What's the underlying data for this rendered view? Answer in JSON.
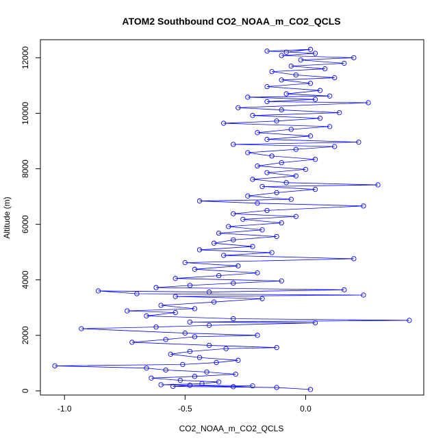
{
  "chart_data": {
    "type": "scatter",
    "title": "ATOM2 Southbound CO2_NOAA_m_CO2_QCLS",
    "xlabel": "CO2_NOAA_m_CO2_QCLS",
    "ylabel": "Altitude (m)",
    "xlim": [
      -1.1,
      0.49
    ],
    "ylim": [
      -150,
      12650
    ],
    "x_ticks": [
      -1.0,
      -0.5,
      0.0
    ],
    "x_tick_labels": [
      "-1.0",
      "-0.5",
      "0.0"
    ],
    "y_ticks": [
      0,
      2000,
      4000,
      6000,
      8000,
      10000,
      12000
    ],
    "y_tick_labels": [
      "0",
      "2000",
      "4000",
      "6000",
      "8000",
      "10000",
      "12000"
    ],
    "series": [
      {
        "name": "CO2_NOAA_m_CO2_QCLS",
        "color": "#0000ff",
        "marker": "open-circle",
        "connected": true,
        "points": [
          [
            0.02,
            50
          ],
          [
            -0.12,
            120
          ],
          [
            -0.55,
            160
          ],
          [
            -0.48,
            200
          ],
          [
            -0.3,
            150
          ],
          [
            -0.22,
            180
          ],
          [
            -0.6,
            220
          ],
          [
            -0.43,
            260
          ],
          [
            -0.36,
            320
          ],
          [
            -0.52,
            380
          ],
          [
            -0.64,
            460
          ],
          [
            -0.46,
            520
          ],
          [
            -0.29,
            600
          ],
          [
            -0.41,
            680
          ],
          [
            -0.58,
            750
          ],
          [
            -0.66,
            820
          ],
          [
            -1.04,
            900
          ],
          [
            -0.51,
            950
          ],
          [
            -0.37,
            1020
          ],
          [
            -0.28,
            1100
          ],
          [
            -0.44,
            1200
          ],
          [
            -0.56,
            1320
          ],
          [
            -0.48,
            1420
          ],
          [
            -0.33,
            1520
          ],
          [
            -0.12,
            1560
          ],
          [
            -0.4,
            1640
          ],
          [
            -0.72,
            1750
          ],
          [
            -0.58,
            1850
          ],
          [
            -0.46,
            1950
          ],
          [
            -0.2,
            2000
          ],
          [
            -0.5,
            2080
          ],
          [
            -0.93,
            2240
          ],
          [
            -0.62,
            2300
          ],
          [
            -0.4,
            2360
          ],
          [
            0.04,
            2450
          ],
          [
            -0.48,
            2480
          ],
          [
            0.43,
            2540
          ],
          [
            -0.3,
            2600
          ],
          [
            -0.66,
            2700
          ],
          [
            -0.54,
            2820
          ],
          [
            -0.74,
            2880
          ],
          [
            -0.46,
            2960
          ],
          [
            -0.6,
            3080
          ],
          [
            -0.38,
            3200
          ],
          [
            -0.18,
            3320
          ],
          [
            -0.54,
            3400
          ],
          [
            0.24,
            3450
          ],
          [
            -0.7,
            3500
          ],
          [
            -0.86,
            3600
          ],
          [
            -0.4,
            3560
          ],
          [
            0.16,
            3640
          ],
          [
            -0.62,
            3720
          ],
          [
            -0.48,
            3800
          ],
          [
            -0.3,
            3880
          ],
          [
            -0.1,
            3960
          ],
          [
            -0.54,
            4050
          ],
          [
            -0.36,
            4150
          ],
          [
            -0.2,
            4250
          ],
          [
            -0.46,
            4380
          ],
          [
            -0.28,
            4500
          ],
          [
            -0.5,
            4620
          ],
          [
            0.2,
            4760
          ],
          [
            -0.34,
            4880
          ],
          [
            -0.14,
            4980
          ],
          [
            -0.44,
            5080
          ],
          [
            -0.22,
            5200
          ],
          [
            -0.38,
            5320
          ],
          [
            -0.3,
            5440
          ],
          [
            -0.12,
            5560
          ],
          [
            -0.36,
            5680
          ],
          [
            -0.18,
            5800
          ],
          [
            -0.32,
            5920
          ],
          [
            -0.1,
            6050
          ],
          [
            -0.26,
            6180
          ],
          [
            -0.04,
            6280
          ],
          [
            -0.3,
            6380
          ],
          [
            -0.16,
            6500
          ],
          [
            0.24,
            6660
          ],
          [
            -0.2,
            6760
          ],
          [
            -0.44,
            6840
          ],
          [
            -0.06,
            6900
          ],
          [
            -0.24,
            7020
          ],
          [
            -0.12,
            7140
          ],
          [
            0.04,
            7260
          ],
          [
            -0.18,
            7360
          ],
          [
            0.3,
            7420
          ],
          [
            -0.08,
            7500
          ],
          [
            -0.22,
            7620
          ],
          [
            -0.04,
            7740
          ],
          [
            -0.16,
            7860
          ],
          [
            0.0,
            7980
          ],
          [
            -0.2,
            8100
          ],
          [
            -0.1,
            8220
          ],
          [
            0.04,
            8340
          ],
          [
            -0.14,
            8460
          ],
          [
            -0.24,
            8580
          ],
          [
            -0.04,
            8700
          ],
          [
            0.12,
            8800
          ],
          [
            -0.3,
            8880
          ],
          [
            0.22,
            8960
          ],
          [
            -0.16,
            9060
          ],
          [
            0.02,
            9180
          ],
          [
            -0.2,
            9300
          ],
          [
            -0.06,
            9420
          ],
          [
            0.1,
            9520
          ],
          [
            -0.34,
            9640
          ],
          [
            -0.12,
            9720
          ],
          [
            0.06,
            9820
          ],
          [
            -0.22,
            9920
          ],
          [
            0.14,
            10020
          ],
          [
            -0.1,
            10120
          ],
          [
            -0.28,
            10200
          ],
          [
            0.26,
            10380
          ],
          [
            -0.16,
            10420
          ],
          [
            0.04,
            10500
          ],
          [
            -0.24,
            10580
          ],
          [
            0.1,
            10620
          ],
          [
            -0.08,
            10700
          ],
          [
            0.06,
            10820
          ],
          [
            -0.16,
            10960
          ],
          [
            0.02,
            11080
          ],
          [
            -0.1,
            11200
          ],
          [
            0.12,
            11280
          ],
          [
            -0.04,
            11380
          ],
          [
            -0.14,
            11500
          ],
          [
            0.08,
            11600
          ],
          [
            -0.06,
            11700
          ],
          [
            0.16,
            11800
          ],
          [
            -0.02,
            11920
          ],
          [
            0.2,
            12000
          ],
          [
            -0.1,
            12080
          ],
          [
            0.04,
            12160
          ],
          [
            -0.16,
            12240
          ],
          [
            0.02,
            12300
          ],
          [
            -0.08,
            12200
          ]
        ]
      }
    ]
  }
}
